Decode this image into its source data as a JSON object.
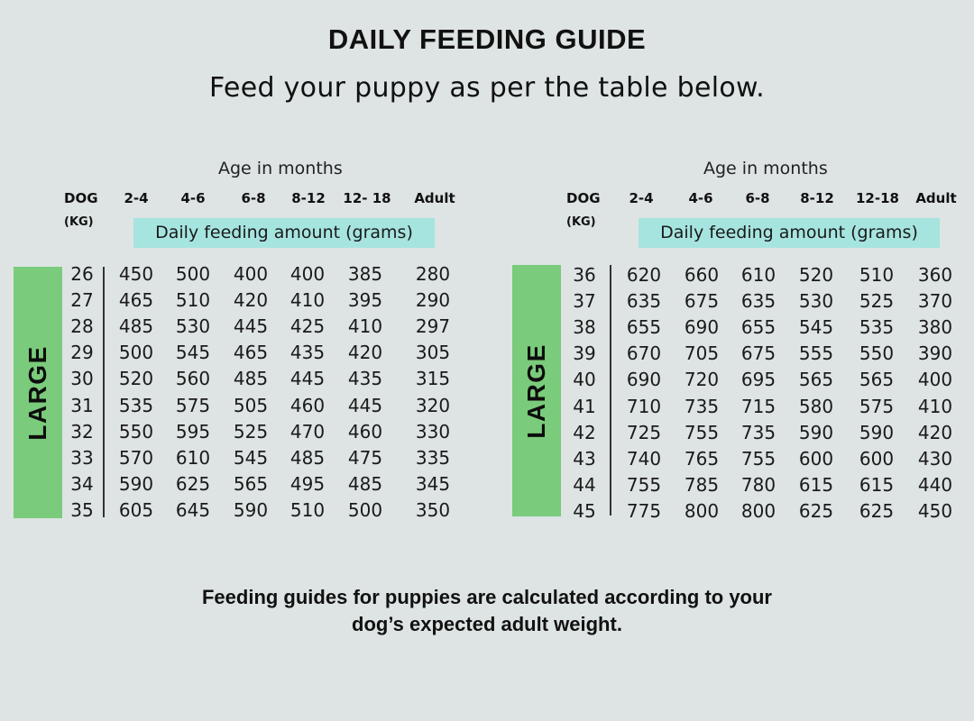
{
  "header": {
    "title": "DAILY FEEDING GUIDE",
    "subtitle": "Feed your puppy as per the table below."
  },
  "colors": {
    "background": "#dde4e3",
    "banner": "#a6e4df",
    "size_band": "#7acb7b",
    "text": "#111111"
  },
  "tables": [
    {
      "age_label": "Age in months",
      "dog_label": "DOG",
      "kg_label": "(KG)",
      "columns": [
        "2-4",
        "4-6",
        "6-8",
        "8-12",
        "12- 18",
        "Adult"
      ],
      "banner": "Daily feeding amount (grams)",
      "size_label": "LARGE",
      "rows": [
        {
          "kg": "26",
          "values": [
            "450",
            "500",
            "400",
            "400",
            "385",
            "280"
          ]
        },
        {
          "kg": "27",
          "values": [
            "465",
            "510",
            "420",
            "410",
            "395",
            "290"
          ]
        },
        {
          "kg": "28",
          "values": [
            "485",
            "530",
            "445",
            "425",
            "410",
            "297"
          ]
        },
        {
          "kg": "29",
          "values": [
            "500",
            "545",
            "465",
            "435",
            "420",
            "305"
          ]
        },
        {
          "kg": "30",
          "values": [
            "520",
            "560",
            "485",
            "445",
            "435",
            "315"
          ]
        },
        {
          "kg": "31",
          "values": [
            "535",
            "575",
            "505",
            "460",
            "445",
            "320"
          ]
        },
        {
          "kg": "32",
          "values": [
            "550",
            "595",
            "525",
            "470",
            "460",
            "330"
          ]
        },
        {
          "kg": "33",
          "values": [
            "570",
            "610",
            "545",
            "485",
            "475",
            "335"
          ]
        },
        {
          "kg": "34",
          "values": [
            "590",
            "625",
            "565",
            "495",
            "485",
            "345"
          ]
        },
        {
          "kg": "35",
          "values": [
            "605",
            "645",
            "590",
            "510",
            "500",
            "350"
          ]
        }
      ]
    },
    {
      "age_label": "Age in months",
      "dog_label": "DOG",
      "kg_label": "(KG)",
      "columns": [
        "2-4",
        "4-6",
        "6-8",
        "8-12",
        "12-18",
        "Adult"
      ],
      "banner": "Daily feeding amount (grams)",
      "size_label": "LARGE",
      "rows": [
        {
          "kg": "36",
          "values": [
            "620",
            "660",
            "610",
            "520",
            "510",
            "360"
          ]
        },
        {
          "kg": "37",
          "values": [
            "635",
            "675",
            "635",
            "530",
            "525",
            "370"
          ]
        },
        {
          "kg": "38",
          "values": [
            "655",
            "690",
            "655",
            "545",
            "535",
            "380"
          ]
        },
        {
          "kg": "39",
          "values": [
            "670",
            "705",
            "675",
            "555",
            "550",
            "390"
          ]
        },
        {
          "kg": "40",
          "values": [
            "690",
            "720",
            "695",
            "565",
            "565",
            "400"
          ]
        },
        {
          "kg": "41",
          "values": [
            "710",
            "735",
            "715",
            "580",
            "575",
            "410"
          ]
        },
        {
          "kg": "42",
          "values": [
            "725",
            "755",
            "735",
            "590",
            "590",
            "420"
          ]
        },
        {
          "kg": "43",
          "values": [
            "740",
            "765",
            "755",
            "600",
            "600",
            "430"
          ]
        },
        {
          "kg": "44",
          "values": [
            "755",
            "785",
            "780",
            "615",
            "615",
            "440"
          ]
        },
        {
          "kg": "45",
          "values": [
            "775",
            "800",
            "800",
            "625",
            "625",
            "450"
          ]
        }
      ]
    }
  ],
  "footer": {
    "line1": "Feeding guides for puppies are calculated according to your",
    "line2": "dog’s expected adult weight."
  }
}
